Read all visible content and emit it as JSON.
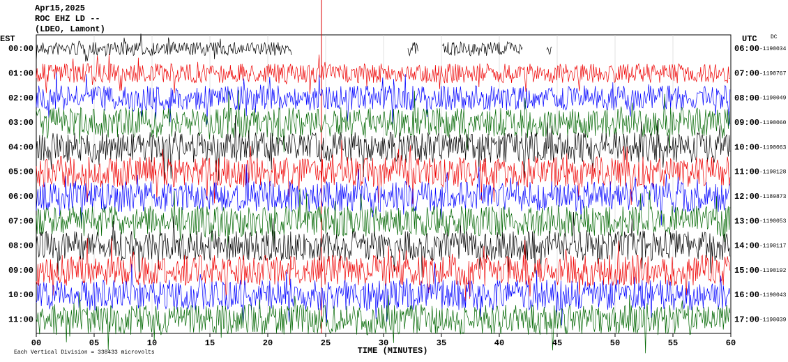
{
  "header": {
    "lines": [
      "Apr15,2025",
      "ROC EHZ LD --",
      "(LDEO, Lamont)"
    ]
  },
  "left_axis": {
    "title": "EST",
    "labels": [
      "00:00",
      "01:00",
      "02:00",
      "03:00",
      "04:00",
      "05:00",
      "06:00",
      "07:00",
      "08:00",
      "09:00",
      "10:00",
      "11:00"
    ]
  },
  "right_axis": {
    "title": "UTC",
    "corner": "DC",
    "labels": [
      "06:00",
      "07:00",
      "08:00",
      "09:00",
      "10:00",
      "11:00",
      "12:00",
      "13:00",
      "14:00",
      "15:00",
      "16:00",
      "17:00"
    ],
    "offsets": [
      "-1190034",
      "-1190767",
      "-1190049",
      "-1190060",
      "-1190063",
      "-1190128",
      "-1189873",
      "-1190053",
      "-1190117",
      "-1190192",
      "-1190043",
      "-1190039"
    ]
  },
  "x_axis": {
    "title": "TIME (MINUTES)",
    "labels": [
      "00",
      "05",
      "10",
      "15",
      "20",
      "25",
      "30",
      "35",
      "40",
      "45",
      "50",
      "55",
      "60"
    ]
  },
  "footer": "Each Vertical Division = 338433 microvolts"
}
